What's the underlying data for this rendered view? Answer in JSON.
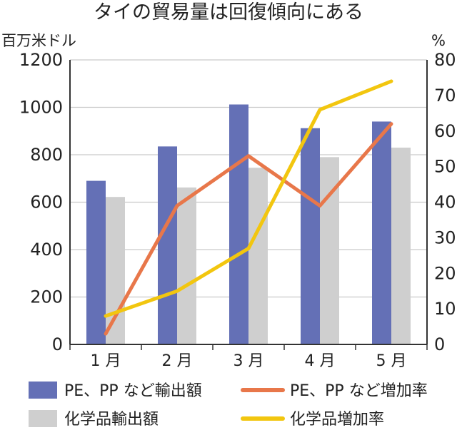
{
  "chart_data": {
    "type": "bar",
    "title": "タイの貿易量は回復傾向にある",
    "categories": [
      "1 月",
      "2 月",
      "3 月",
      "4 月",
      "5 月"
    ],
    "y_left": {
      "label": "百万米ドル",
      "range": [
        0,
        1200
      ],
      "ticks": [
        "0",
        "200",
        "400",
        "600",
        "800",
        "1000",
        "1200"
      ]
    },
    "y_right": {
      "label": "%",
      "range": [
        0,
        80
      ],
      "ticks": [
        "0",
        "10",
        "20",
        "30",
        "40",
        "50",
        "60",
        "70",
        "80"
      ]
    },
    "grid": "horizontal",
    "legend": "bottom",
    "series": [
      {
        "name": "PE、PP など輸出額",
        "type": "bar",
        "axis": "left",
        "color": "#6470b6",
        "values": [
          690,
          835,
          1012,
          912,
          940
        ]
      },
      {
        "name": "化学品輸出額",
        "type": "bar",
        "axis": "left",
        "color": "#cfcfcf",
        "values": [
          622,
          662,
          745,
          790,
          830
        ]
      },
      {
        "name": "PE、PP など増加率",
        "type": "line",
        "axis": "right",
        "color": "#e8774a",
        "values": [
          3,
          39,
          53,
          39,
          62
        ]
      },
      {
        "name": "化学品増加率",
        "type": "line",
        "axis": "right",
        "color": "#f2c60f",
        "values": [
          8,
          15,
          27,
          66,
          74
        ]
      }
    ]
  }
}
